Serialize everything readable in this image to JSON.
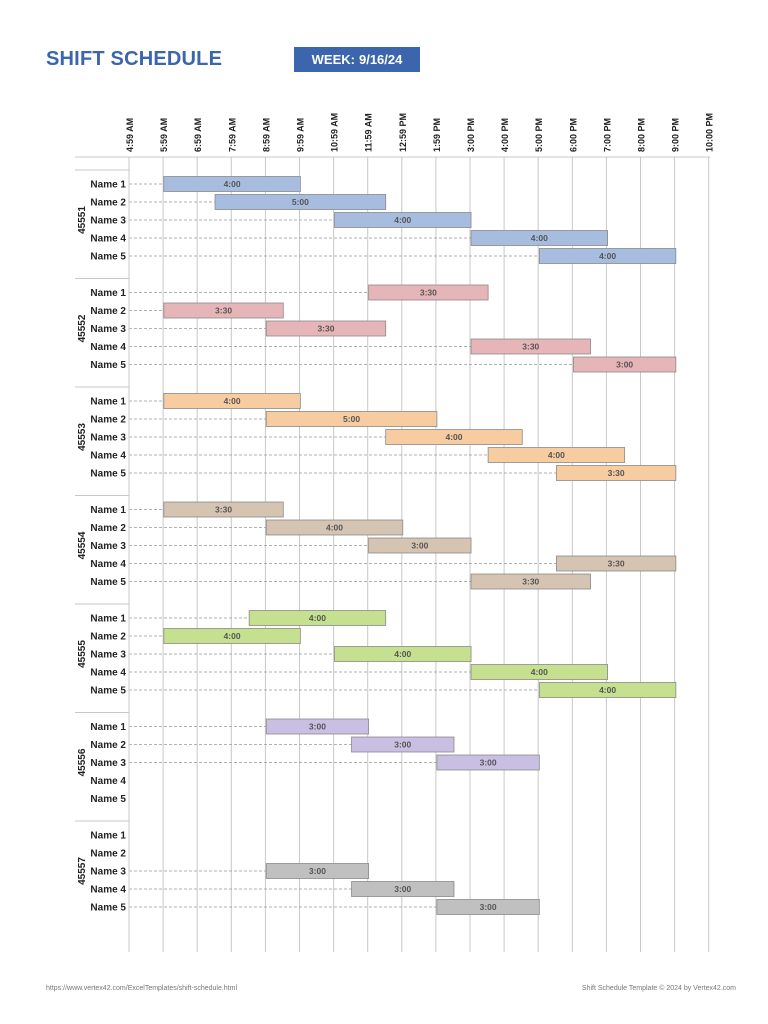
{
  "header": {
    "title": "SHIFT SCHEDULE",
    "week_label": "WEEK:",
    "week_value": "9/16/24"
  },
  "footer": {
    "url": "https://www.vertex42.com/ExcelTemplates/shift-schedule.html",
    "copyright": "Shift Schedule Template © 2024 by Vertex42.com"
  },
  "chart_data": {
    "type": "gantt",
    "time_ticks": [
      "4:59 AM",
      "5:59 AM",
      "6:59 AM",
      "7:59 AM",
      "8:59 AM",
      "9:59 AM",
      "10:59 AM",
      "11:59 AM",
      "12:59 PM",
      "1:59 PM",
      "3:00 PM",
      "4:00 PM",
      "5:00 PM",
      "6:00 PM",
      "7:00 PM",
      "8:00 PM",
      "9:00 PM",
      "10:00 PM"
    ],
    "x_range_hours": [
      4.98,
      22.0
    ],
    "colors": [
      "#a7bde0",
      "#e6b5b8",
      "#f6cca0",
      "#d6c4b2",
      "#c5e08e",
      "#c8bfe2",
      "#c0c0c0"
    ],
    "days": [
      {
        "label": "45551",
        "shifts": [
          {
            "name": "Name 1",
            "start": 6.0,
            "end": 10.0,
            "label": "4:00"
          },
          {
            "name": "Name 2",
            "start": 7.5,
            "end": 12.5,
            "label": "5:00"
          },
          {
            "name": "Name 3",
            "start": 11.0,
            "end": 15.0,
            "label": "4:00"
          },
          {
            "name": "Name 4",
            "start": 15.0,
            "end": 19.0,
            "label": "4:00"
          },
          {
            "name": "Name 5",
            "start": 17.0,
            "end": 21.0,
            "label": "4:00"
          }
        ]
      },
      {
        "label": "45552",
        "shifts": [
          {
            "name": "Name 1",
            "start": 12.0,
            "end": 15.5,
            "label": "3:30"
          },
          {
            "name": "Name 2",
            "start": 6.0,
            "end": 9.5,
            "label": "3:30"
          },
          {
            "name": "Name 3",
            "start": 9.0,
            "end": 12.5,
            "label": "3:30"
          },
          {
            "name": "Name 4",
            "start": 15.0,
            "end": 18.5,
            "label": "3:30"
          },
          {
            "name": "Name 5",
            "start": 18.0,
            "end": 21.0,
            "label": "3:00"
          }
        ]
      },
      {
        "label": "45553",
        "shifts": [
          {
            "name": "Name 1",
            "start": 6.0,
            "end": 10.0,
            "label": "4:00"
          },
          {
            "name": "Name 2",
            "start": 9.0,
            "end": 14.0,
            "label": "5:00"
          },
          {
            "name": "Name 3",
            "start": 12.5,
            "end": 16.5,
            "label": "4:00"
          },
          {
            "name": "Name 4",
            "start": 15.5,
            "end": 19.5,
            "label": "4:00"
          },
          {
            "name": "Name 5",
            "start": 17.5,
            "end": 21.0,
            "label": "3:30"
          }
        ]
      },
      {
        "label": "45554",
        "shifts": [
          {
            "name": "Name 1",
            "start": 6.0,
            "end": 9.5,
            "label": "3:30"
          },
          {
            "name": "Name 2",
            "start": 9.0,
            "end": 13.0,
            "label": "4:00"
          },
          {
            "name": "Name 3",
            "start": 12.0,
            "end": 15.0,
            "label": "3:00"
          },
          {
            "name": "Name 4",
            "start": 17.5,
            "end": 21.0,
            "label": "3:30"
          },
          {
            "name": "Name 5",
            "start": 15.0,
            "end": 18.5,
            "label": "3:30"
          }
        ]
      },
      {
        "label": "45555",
        "shifts": [
          {
            "name": "Name 1",
            "start": 8.5,
            "end": 12.5,
            "label": "4:00"
          },
          {
            "name": "Name 2",
            "start": 6.0,
            "end": 10.0,
            "label": "4:00"
          },
          {
            "name": "Name 3",
            "start": 11.0,
            "end": 15.0,
            "label": "4:00"
          },
          {
            "name": "Name 4",
            "start": 15.0,
            "end": 19.0,
            "label": "4:00"
          },
          {
            "name": "Name 5",
            "start": 17.0,
            "end": 21.0,
            "label": "4:00"
          }
        ]
      },
      {
        "label": "45556",
        "shifts": [
          {
            "name": "Name 1",
            "start": 9.0,
            "end": 12.0,
            "label": "3:00"
          },
          {
            "name": "Name 2",
            "start": 11.5,
            "end": 14.5,
            "label": "3:00"
          },
          {
            "name": "Name 3",
            "start": 14.0,
            "end": 17.0,
            "label": "3:00"
          },
          {
            "name": "Name 4"
          },
          {
            "name": "Name 5"
          }
        ]
      },
      {
        "label": "45557",
        "shifts": [
          {
            "name": "Name 1"
          },
          {
            "name": "Name 2"
          },
          {
            "name": "Name 3",
            "start": 9.0,
            "end": 12.0,
            "label": "3:00"
          },
          {
            "name": "Name 4",
            "start": 11.5,
            "end": 14.5,
            "label": "3:00"
          },
          {
            "name": "Name 5",
            "start": 14.0,
            "end": 17.0,
            "label": "3:00"
          }
        ]
      }
    ]
  }
}
